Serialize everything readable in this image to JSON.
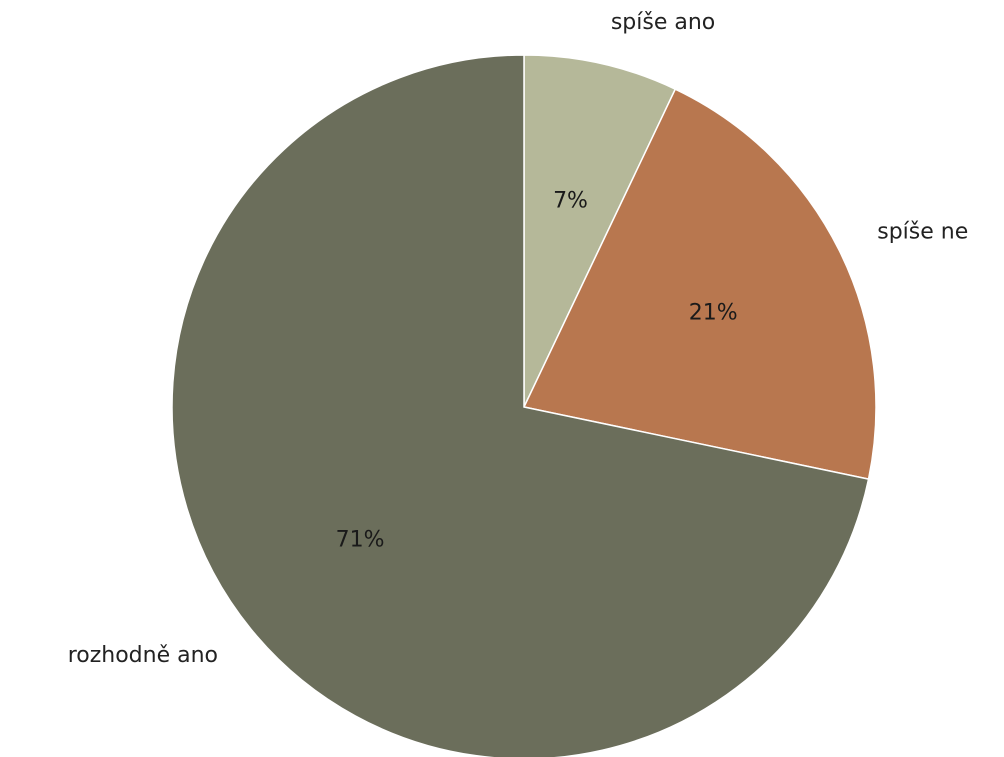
{
  "chart_data": {
    "type": "pie",
    "title": "",
    "slices": [
      {
        "label": "spíše ano",
        "value": 7,
        "display": "7%",
        "color": "#b5b899"
      },
      {
        "label": "spíše ne",
        "value": 21,
        "display": "21%",
        "color": "#b8774f"
      },
      {
        "label": "rozhodně ano",
        "value": 71,
        "display": "71%",
        "color": "#6b6e5b"
      }
    ],
    "start_angle": "top (12 o'clock)",
    "direction": "clockwise",
    "legend": "none"
  }
}
